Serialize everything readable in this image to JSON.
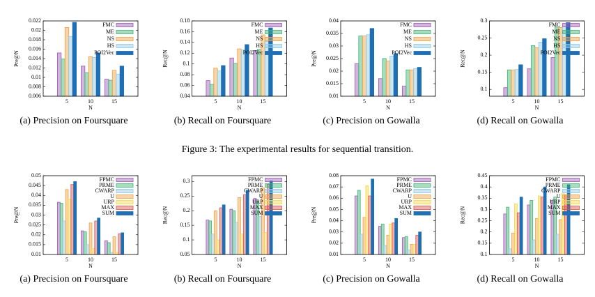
{
  "caption": "Figure 3: The experimental results for sequential transition.",
  "chart_data": [
    {
      "type": "bar",
      "caption": "(a) Precision on Foursquare",
      "ylabel": "Pre@N",
      "xlabel": "N",
      "categories": [
        "5",
        "10",
        "15"
      ],
      "ylim": [
        0.006,
        0.022
      ],
      "yticks": [
        0.006,
        0.008,
        0.01,
        0.012,
        0.014,
        0.016,
        0.018,
        0.02,
        0.022
      ],
      "series": [
        {
          "name": "FMC",
          "color": "#9b59b6",
          "values": [
            0.0152,
            0.0124,
            0.0096
          ]
        },
        {
          "name": "ME",
          "color": "#3cb371",
          "values": [
            0.0139,
            0.011,
            0.0094
          ]
        },
        {
          "name": "NS",
          "color": "#f0a040",
          "values": [
            0.0206,
            0.0144,
            0.0115
          ]
        },
        {
          "name": "HS",
          "color": "#8ecae6",
          "values": [
            0.0187,
            0.0142,
            0.0107
          ]
        },
        {
          "name": "POI2Vec",
          "color": "#1f6fb5",
          "values": [
            0.0217,
            0.0152,
            0.0124
          ]
        }
      ]
    },
    {
      "type": "bar",
      "caption": "(b) Recall on Foursquare",
      "ylabel": "Rec@N",
      "xlabel": "N",
      "categories": [
        "5",
        "10",
        "15"
      ],
      "ylim": [
        0.04,
        0.18
      ],
      "yticks": [
        0.04,
        0.06,
        0.08,
        0.1,
        0.12,
        0.14,
        0.16,
        0.18
      ],
      "series": [
        {
          "name": "FMC",
          "color": "#9b59b6",
          "values": [
            0.069,
            0.111,
            0.125
          ]
        },
        {
          "name": "ME",
          "color": "#3cb371",
          "values": [
            0.062,
            0.101,
            0.127
          ]
        },
        {
          "name": "NS",
          "color": "#f0a040",
          "values": [
            0.092,
            0.128,
            0.154
          ]
        },
        {
          "name": "HS",
          "color": "#8ecae6",
          "values": [
            0.087,
            0.126,
            0.142
          ]
        },
        {
          "name": "POI2Vec",
          "color": "#1f6fb5",
          "values": [
            0.097,
            0.136,
            0.167
          ]
        }
      ]
    },
    {
      "type": "bar",
      "caption": "(c) Precision on Gowalla",
      "ylabel": "Pre@N",
      "xlabel": "N",
      "categories": [
        "5",
        "10",
        "15"
      ],
      "ylim": [
        0.01,
        0.04
      ],
      "yticks": [
        0.01,
        0.015,
        0.02,
        0.025,
        0.03,
        0.035,
        0.04
      ],
      "series": [
        {
          "name": "FMC",
          "color": "#9b59b6",
          "values": [
            0.023,
            0.017,
            0.014
          ]
        },
        {
          "name": "ME",
          "color": "#3cb371",
          "values": [
            0.034,
            0.025,
            0.0205
          ]
        },
        {
          "name": "NS",
          "color": "#f0a040",
          "values": [
            0.034,
            0.024,
            0.0205
          ]
        },
        {
          "name": "HS",
          "color": "#8ecae6",
          "values": [
            0.0345,
            0.026,
            0.021
          ]
        },
        {
          "name": "POI2Vec",
          "color": "#1f6fb5",
          "values": [
            0.037,
            0.027,
            0.0215
          ]
        }
      ]
    },
    {
      "type": "bar",
      "caption": "(d) Recall on Gowalla",
      "ylabel": "Rec@N",
      "xlabel": "N",
      "categories": [
        "5",
        "10",
        "15"
      ],
      "ylim": [
        0.08,
        0.3
      ],
      "yticks": [
        0.1,
        0.15,
        0.2,
        0.25,
        0.3
      ],
      "series": [
        {
          "name": "FMC",
          "color": "#9b59b6",
          "values": [
            0.105,
            0.16,
            0.193
          ]
        },
        {
          "name": "ME",
          "color": "#3cb371",
          "values": [
            0.157,
            0.228,
            0.282
          ]
        },
        {
          "name": "NS",
          "color": "#f0a040",
          "values": [
            0.157,
            0.222,
            0.281
          ]
        },
        {
          "name": "HS",
          "color": "#8ecae6",
          "values": [
            0.158,
            0.238,
            0.283
          ]
        },
        {
          "name": "POI2Vec",
          "color": "#1f6fb5",
          "values": [
            0.172,
            0.248,
            0.295
          ]
        }
      ]
    },
    {
      "type": "bar",
      "caption": "(a) Precision on Foursquare",
      "ylabel": "Pre@N",
      "xlabel": "N",
      "categories": [
        "5",
        "10",
        "15"
      ],
      "ylim": [
        0.01,
        0.05
      ],
      "yticks": [
        0.01,
        0.015,
        0.02,
        0.025,
        0.03,
        0.035,
        0.04,
        0.045,
        0.05
      ],
      "series": [
        {
          "name": "FPMC",
          "color": "#9b59b6",
          "values": [
            0.0365,
            0.022,
            0.017
          ]
        },
        {
          "name": "PRME",
          "color": "#3cb371",
          "values": [
            0.036,
            0.0215,
            0.016
          ]
        },
        {
          "name": "CWARP",
          "color": "#8ecae6",
          "values": [
            0.027,
            0.015,
            0.011
          ]
        },
        {
          "name": "U",
          "color": "#f0a040",
          "values": [
            0.043,
            0.026,
            0.019
          ]
        },
        {
          "name": "URP",
          "color": "#f5d742",
          "values": [
            0.038,
            0.013,
            0.011
          ]
        },
        {
          "name": "MAX",
          "color": "#e0504a",
          "values": [
            0.0455,
            0.027,
            0.0205
          ]
        },
        {
          "name": "SUM",
          "color": "#1f6fb5",
          "values": [
            0.047,
            0.0285,
            0.021
          ]
        }
      ]
    },
    {
      "type": "bar",
      "caption": "(b) Recall on Foursquare",
      "ylabel": "Rec@N",
      "xlabel": "N",
      "categories": [
        "5",
        "10",
        "15"
      ],
      "ylim": [
        0.05,
        0.32
      ],
      "yticks": [
        0.05,
        0.1,
        0.15,
        0.2,
        0.25,
        0.3
      ],
      "series": [
        {
          "name": "FPMC",
          "color": "#9b59b6",
          "values": [
            0.168,
            0.205,
            0.242
          ]
        },
        {
          "name": "PRME",
          "color": "#3cb371",
          "values": [
            0.165,
            0.2,
            0.232
          ]
        },
        {
          "name": "CWARP",
          "color": "#8ecae6",
          "values": [
            0.12,
            0.16,
            0.18
          ]
        },
        {
          "name": "U",
          "color": "#f0a040",
          "values": [
            0.2,
            0.245,
            0.278
          ]
        },
        {
          "name": "URP",
          "color": "#f5d742",
          "values": [
            0.1,
            0.12,
            0.125
          ]
        },
        {
          "name": "MAX",
          "color": "#e0504a",
          "values": [
            0.21,
            0.255,
            0.29
          ]
        },
        {
          "name": "SUM",
          "color": "#1f6fb5",
          "values": [
            0.22,
            0.27,
            0.302
          ]
        }
      ]
    },
    {
      "type": "bar",
      "caption": "(c) Precision on Gowalla",
      "ylabel": "Pre@N",
      "xlabel": "N",
      "categories": [
        "5",
        "10",
        "15"
      ],
      "ylim": [
        0.01,
        0.08
      ],
      "yticks": [
        0.01,
        0.02,
        0.03,
        0.04,
        0.05,
        0.06,
        0.07,
        0.08
      ],
      "series": [
        {
          "name": "FPMC",
          "color": "#9b59b6",
          "values": [
            0.062,
            0.035,
            0.025
          ]
        },
        {
          "name": "PRME",
          "color": "#3cb371",
          "values": [
            0.067,
            0.037,
            0.026
          ]
        },
        {
          "name": "CWARP",
          "color": "#8ecae6",
          "values": [
            0.028,
            0.018,
            0.014
          ]
        },
        {
          "name": "U",
          "color": "#f0a040",
          "values": [
            0.043,
            0.027,
            0.019
          ]
        },
        {
          "name": "URP",
          "color": "#f5d742",
          "values": [
            0.071,
            0.037,
            0.019
          ]
        },
        {
          "name": "MAX",
          "color": "#e0504a",
          "values": [
            0.062,
            0.038,
            0.027
          ]
        },
        {
          "name": "SUM",
          "color": "#1f6fb5",
          "values": [
            0.077,
            0.042,
            0.03
          ]
        }
      ]
    },
    {
      "type": "bar",
      "caption": "(d) Recall on Gowalla",
      "ylabel": "Rec@N",
      "xlabel": "N",
      "categories": [
        "5",
        "10",
        "15"
      ],
      "ylim": [
        0.1,
        0.45
      ],
      "yticks": [
        0.1,
        0.15,
        0.2,
        0.25,
        0.3,
        0.35,
        0.4,
        0.45
      ],
      "series": [
        {
          "name": "FPMC",
          "color": "#9b59b6",
          "values": [
            0.28,
            0.32,
            0.34
          ]
        },
        {
          "name": "PRME",
          "color": "#3cb371",
          "values": [
            0.31,
            0.34,
            0.355
          ]
        },
        {
          "name": "CWARP",
          "color": "#8ecae6",
          "values": [
            0.125,
            0.165,
            0.19
          ]
        },
        {
          "name": "U",
          "color": "#f0a040",
          "values": [
            0.195,
            0.26,
            0.255
          ]
        },
        {
          "name": "URP",
          "color": "#f5d742",
          "values": [
            0.325,
            0.36,
            0.37
          ]
        },
        {
          "name": "MAX",
          "color": "#e0504a",
          "values": [
            0.285,
            0.355,
            0.365
          ]
        },
        {
          "name": "SUM",
          "color": "#1f6fb5",
          "values": [
            0.355,
            0.4,
            0.41
          ]
        }
      ]
    }
  ]
}
